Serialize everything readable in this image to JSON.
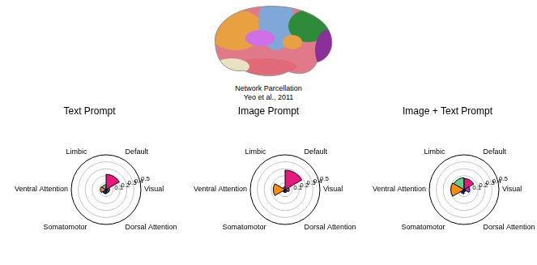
{
  "header": {
    "image_caption": [
      "Network Parcellation",
      "Yeo et al., 2011"
    ]
  },
  "chart_data": [
    {
      "type": "polar_bar",
      "title": "Text Prompt",
      "categories": [
        "Visual",
        "Dorsal Attention",
        "Somatomotor",
        "Ventral Attention",
        "Limbic",
        "Default"
      ],
      "values": [
        0.05,
        0.05,
        0.06,
        0.08,
        0.07,
        0.22
      ],
      "colors": [
        "#9b3fd6",
        "#1a8a1a",
        "#1414e0",
        "#ff8c0a",
        "#5fcf8f",
        "#e8177f"
      ],
      "ylim": [
        0,
        0.5
      ],
      "yticks": [
        0.1,
        0.2,
        0.3,
        0.4,
        0.5
      ],
      "grid": true
    },
    {
      "type": "polar_bar",
      "title": "Image Prompt",
      "categories": [
        "Visual",
        "Dorsal Attention",
        "Somatomotor",
        "Ventral Attention",
        "Limbic",
        "Default"
      ],
      "values": [
        0.06,
        0.04,
        0.04,
        0.17,
        0.04,
        0.28
      ],
      "colors": [
        "#9b3fd6",
        "#1a8a1a",
        "#1414e0",
        "#ff8c0a",
        "#5fcf8f",
        "#e8177f"
      ],
      "ylim": [
        0,
        0.5
      ],
      "yticks": [
        0.1,
        0.2,
        0.3,
        0.4,
        0.5
      ],
      "grid": true
    },
    {
      "type": "polar_bar",
      "title": "Image + Text Prompt",
      "categories": [
        "Visual",
        "Dorsal Attention",
        "Somatomotor",
        "Ventral Attention",
        "Limbic",
        "Default"
      ],
      "values": [
        0.08,
        0.03,
        0.06,
        0.19,
        0.17,
        0.16
      ],
      "colors": [
        "#9b3fd6",
        "#1a8a1a",
        "#1414e0",
        "#ff8c0a",
        "#5fcf8f",
        "#e8177f"
      ],
      "ylim": [
        0,
        0.5
      ],
      "yticks": [
        0.1,
        0.2,
        0.3,
        0.4,
        0.5
      ],
      "grid": true
    }
  ]
}
